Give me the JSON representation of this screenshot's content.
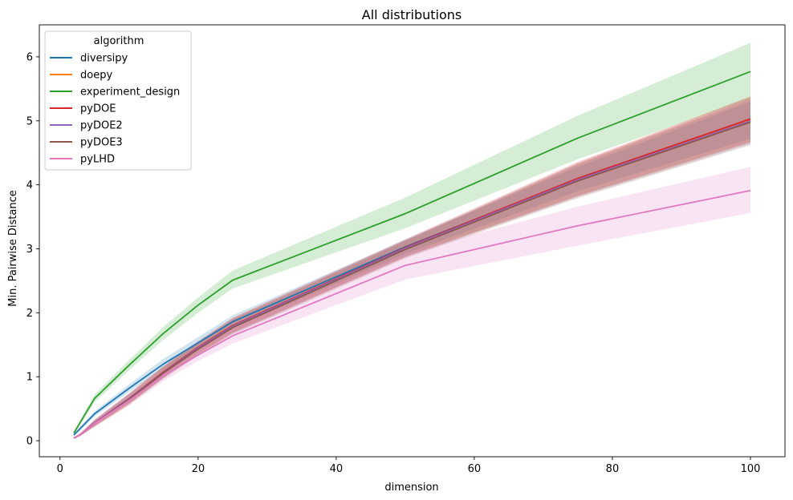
{
  "chart_data": {
    "type": "line",
    "title": "All distributions",
    "xlabel": "dimension",
    "ylabel": "Min. Pairwise Distance",
    "xlim": [
      -3,
      105
    ],
    "ylim": [
      -0.25,
      6.5
    ],
    "xticks": [
      0,
      20,
      40,
      60,
      80,
      100
    ],
    "yticks": [
      0,
      1,
      2,
      3,
      4,
      5,
      6
    ],
    "grid": false,
    "legend": {
      "title": "algorithm",
      "placement": "top-left"
    },
    "x": [
      2,
      3,
      5,
      10,
      15,
      20,
      25,
      50,
      75,
      100
    ],
    "series": [
      {
        "name": "diversipy",
        "color": "#1f77b4",
        "values": [
          0.09,
          0.2,
          0.42,
          0.82,
          1.2,
          1.53,
          1.86,
          3.03,
          4.09,
          5.01
        ],
        "lower": [
          0.07,
          0.17,
          0.38,
          0.76,
          1.12,
          1.44,
          1.76,
          2.92,
          3.9,
          4.72
        ],
        "upper": [
          0.11,
          0.23,
          0.46,
          0.88,
          1.28,
          1.62,
          1.96,
          3.14,
          4.28,
          5.3
        ]
      },
      {
        "name": "doepy",
        "color": "#ff7f0e",
        "values": [
          0.04,
          0.1,
          0.27,
          0.64,
          1.07,
          1.44,
          1.8,
          3.0,
          4.08,
          5.02
        ],
        "lower": [
          0.03,
          0.08,
          0.22,
          0.56,
          0.98,
          1.34,
          1.68,
          2.87,
          3.82,
          4.66
        ],
        "upper": [
          0.05,
          0.12,
          0.32,
          0.72,
          1.16,
          1.54,
          1.92,
          3.13,
          4.34,
          5.38
        ]
      },
      {
        "name": "experiment_design",
        "color": "#2ca02c",
        "values": [
          0.12,
          0.3,
          0.66,
          1.18,
          1.68,
          2.12,
          2.51,
          3.55,
          4.73,
          5.77
        ],
        "lower": [
          0.1,
          0.26,
          0.6,
          1.1,
          1.58,
          2.0,
          2.38,
          3.32,
          4.4,
          5.34
        ],
        "upper": [
          0.14,
          0.34,
          0.72,
          1.26,
          1.78,
          2.24,
          2.66,
          3.8,
          5.08,
          6.22
        ]
      },
      {
        "name": "pyDOE",
        "color": "#d62728",
        "values": [
          0.04,
          0.1,
          0.28,
          0.66,
          1.08,
          1.46,
          1.8,
          3.02,
          4.1,
          5.03
        ],
        "lower": [
          0.03,
          0.08,
          0.23,
          0.58,
          0.99,
          1.36,
          1.69,
          2.88,
          3.83,
          4.67
        ],
        "upper": [
          0.05,
          0.12,
          0.33,
          0.74,
          1.17,
          1.56,
          1.92,
          3.15,
          4.36,
          5.38
        ]
      },
      {
        "name": "pyDOE2",
        "color": "#9467bd",
        "values": [
          0.04,
          0.1,
          0.28,
          0.66,
          1.07,
          1.45,
          1.79,
          3.01,
          4.08,
          5.0
        ],
        "lower": [
          0.03,
          0.08,
          0.23,
          0.58,
          0.98,
          1.35,
          1.68,
          2.87,
          3.81,
          4.64
        ],
        "upper": [
          0.05,
          0.12,
          0.33,
          0.74,
          1.16,
          1.55,
          1.91,
          3.14,
          4.34,
          5.36
        ]
      },
      {
        "name": "pyDOE3",
        "color": "#8c564b",
        "values": [
          0.04,
          0.1,
          0.27,
          0.65,
          1.06,
          1.43,
          1.77,
          2.99,
          4.06,
          4.98
        ],
        "lower": [
          0.03,
          0.08,
          0.22,
          0.57,
          0.97,
          1.33,
          1.66,
          2.85,
          3.79,
          4.62
        ],
        "upper": [
          0.05,
          0.12,
          0.32,
          0.73,
          1.15,
          1.53,
          1.89,
          3.12,
          4.32,
          5.34
        ]
      },
      {
        "name": "pyLHD",
        "color": "#e377c2",
        "values": [
          0.04,
          0.1,
          0.27,
          0.63,
          1.02,
          1.34,
          1.64,
          2.74,
          3.36,
          3.91
        ],
        "lower": [
          0.03,
          0.08,
          0.22,
          0.55,
          0.93,
          1.25,
          1.52,
          2.52,
          3.05,
          3.56
        ],
        "upper": [
          0.05,
          0.12,
          0.32,
          0.71,
          1.11,
          1.44,
          1.76,
          2.94,
          3.66,
          4.28
        ]
      }
    ]
  }
}
